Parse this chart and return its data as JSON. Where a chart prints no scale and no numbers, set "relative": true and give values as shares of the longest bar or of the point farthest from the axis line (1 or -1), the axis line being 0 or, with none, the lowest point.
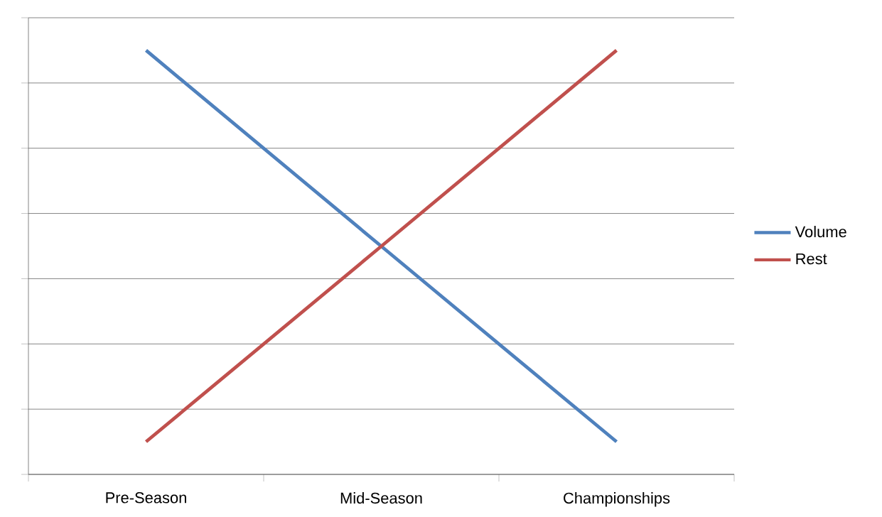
{
  "chart_data": {
    "type": "line",
    "relative": true,
    "categories": [
      "Pre-Season",
      "Mid-Season",
      "Championships"
    ],
    "series": [
      {
        "name": "Volume",
        "color": "#4f81bd",
        "values": [
          1,
          0.538,
          0.077
        ]
      },
      {
        "name": "Rest",
        "color": "#c0504d",
        "values": [
          0.077,
          0.538,
          1
        ]
      }
    ],
    "grid": "y",
    "legend": "right",
    "marker": "none",
    "line_style": "solid"
  }
}
